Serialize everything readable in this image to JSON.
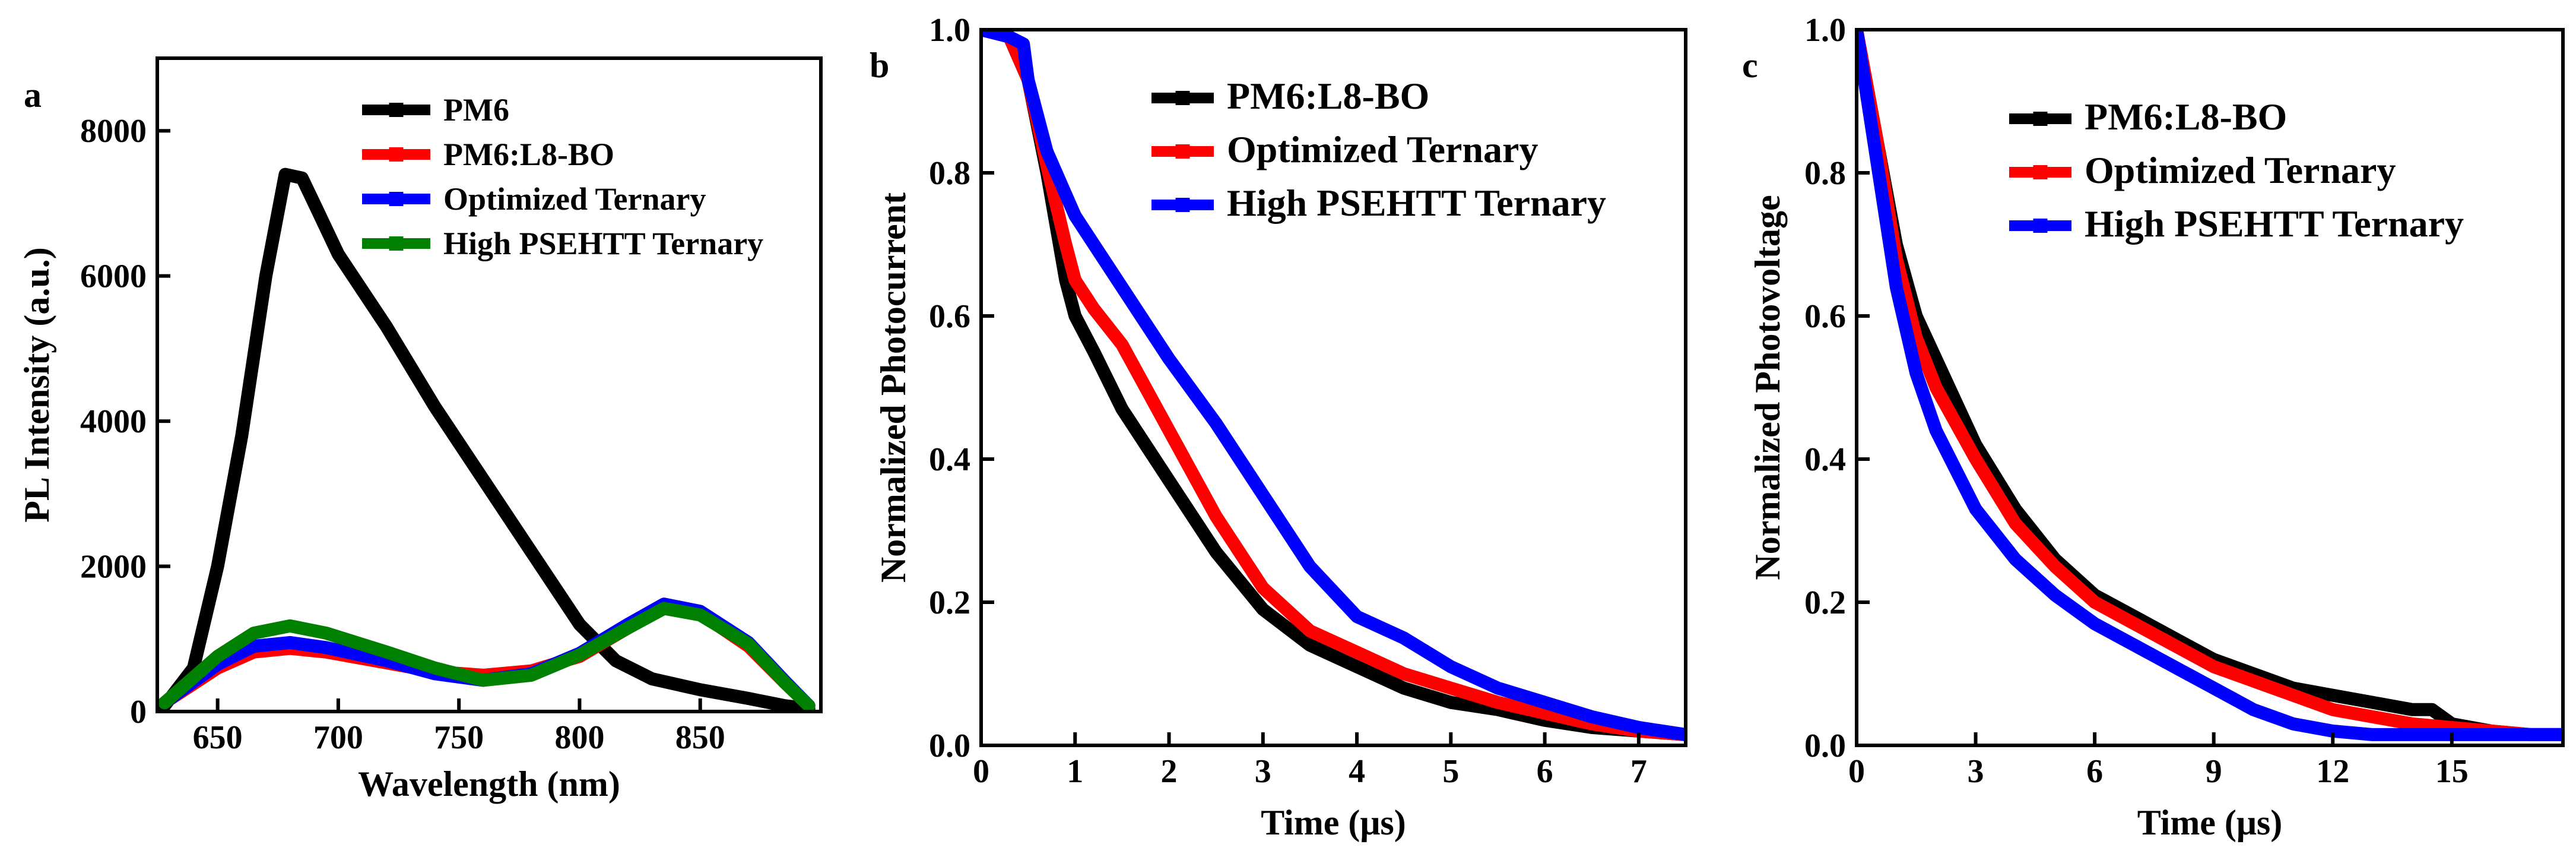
{
  "chart_data": [
    {
      "panel_label": "a",
      "type": "line",
      "xlabel": "Wavelength (nm)",
      "ylabel": "PL Intensity (a.u.)",
      "xlim": [
        625,
        900
      ],
      "ylim": [
        0,
        9000
      ],
      "xticks": [
        650,
        700,
        750,
        800,
        850
      ],
      "yticks": [
        0,
        2000,
        4000,
        6000,
        8000
      ],
      "series": [
        {
          "name": "PM6",
          "color": "#000000",
          "x": [
            628,
            640,
            650,
            660,
            670,
            678,
            685,
            690,
            700,
            720,
            740,
            760,
            780,
            800,
            815,
            830,
            850,
            870,
            885,
            895
          ],
          "y": [
            80,
            600,
            2000,
            3800,
            6000,
            7400,
            7350,
            7000,
            6300,
            5300,
            4200,
            3200,
            2200,
            1200,
            700,
            450,
            300,
            180,
            80,
            40
          ]
        },
        {
          "name": "PM6:L8-BO",
          "color": "#ff0000",
          "x": [
            628,
            650,
            665,
            680,
            695,
            720,
            740,
            760,
            780,
            800,
            820,
            835,
            850,
            870,
            885,
            895
          ],
          "y": [
            120,
            600,
            820,
            870,
            820,
            670,
            550,
            500,
            560,
            760,
            1150,
            1450,
            1350,
            900,
            400,
            80
          ]
        },
        {
          "name": "Optimized Ternary",
          "color": "#0000ff",
          "x": [
            628,
            650,
            665,
            680,
            695,
            720,
            740,
            760,
            780,
            800,
            820,
            835,
            850,
            870,
            885,
            895
          ],
          "y": [
            120,
            650,
            900,
            950,
            880,
            700,
            520,
            430,
            520,
            800,
            1200,
            1480,
            1380,
            950,
            420,
            80
          ]
        },
        {
          "name": "High PSEHTT Ternary",
          "color": "#008000",
          "x": [
            628,
            650,
            665,
            680,
            695,
            720,
            740,
            760,
            780,
            800,
            820,
            835,
            850,
            870,
            885,
            895
          ],
          "y": [
            120,
            760,
            1080,
            1180,
            1080,
            820,
            600,
            430,
            500,
            780,
            1150,
            1420,
            1330,
            930,
            400,
            80
          ]
        }
      ]
    },
    {
      "panel_label": "b",
      "type": "line",
      "xlabel": "Time (μs)",
      "ylabel": "Normalized Photocurrent",
      "xlim": [
        0,
        7.5
      ],
      "ylim": [
        0,
        1.0
      ],
      "xticks": [
        0,
        1,
        2,
        3,
        4,
        5,
        6,
        7
      ],
      "yticks": [
        0.0,
        0.2,
        0.4,
        0.6,
        0.8,
        1.0
      ],
      "yticklabels": [
        "0.0",
        "0.2",
        "0.4",
        "0.6",
        "0.8",
        "1.0"
      ],
      "series": [
        {
          "name": "PM6:L8-BO",
          "color": "#000000",
          "x": [
            0,
            0.3,
            0.5,
            0.7,
            0.9,
            1.0,
            1.2,
            1.5,
            2.0,
            2.5,
            3.0,
            3.5,
            4.0,
            4.5,
            5.0,
            5.5,
            6.0,
            6.5,
            7.0,
            7.5
          ],
          "y": [
            1.0,
            0.99,
            0.93,
            0.8,
            0.65,
            0.6,
            0.55,
            0.47,
            0.37,
            0.27,
            0.19,
            0.14,
            0.11,
            0.08,
            0.06,
            0.05,
            0.035,
            0.025,
            0.02,
            0.015
          ]
        },
        {
          "name": "Optimized Ternary",
          "color": "#ff0000",
          "x": [
            0,
            0.3,
            0.5,
            0.7,
            0.9,
            1.0,
            1.2,
            1.5,
            2.0,
            2.5,
            3.0,
            3.5,
            4.0,
            4.5,
            5.0,
            5.5,
            6.0,
            6.5,
            7.0,
            7.5
          ],
          "y": [
            1.0,
            0.99,
            0.93,
            0.81,
            0.7,
            0.65,
            0.61,
            0.56,
            0.44,
            0.32,
            0.22,
            0.16,
            0.13,
            0.1,
            0.08,
            0.06,
            0.045,
            0.03,
            0.02,
            0.015
          ]
        },
        {
          "name": "High PSEHTT Ternary",
          "color": "#0000ff",
          "x": [
            0,
            0.3,
            0.45,
            0.5,
            0.7,
            0.9,
            1.0,
            1.2,
            1.5,
            2.0,
            2.5,
            3.0,
            3.5,
            4.0,
            4.5,
            5.0,
            5.5,
            6.0,
            6.5,
            7.0,
            7.5
          ],
          "y": [
            1.0,
            0.99,
            0.98,
            0.93,
            0.83,
            0.77,
            0.74,
            0.7,
            0.64,
            0.54,
            0.45,
            0.35,
            0.25,
            0.18,
            0.15,
            0.11,
            0.08,
            0.06,
            0.04,
            0.025,
            0.015
          ]
        }
      ]
    },
    {
      "panel_label": "c",
      "type": "line",
      "xlabel": "Time (μs)",
      "ylabel": "Normalized Photovoltage",
      "xlim": [
        0,
        17.8
      ],
      "ylim": [
        0,
        1.0
      ],
      "xticks": [
        0,
        3,
        6,
        9,
        12,
        15
      ],
      "yticks": [
        0.0,
        0.2,
        0.4,
        0.6,
        0.8,
        1.0
      ],
      "yticklabels": [
        "0.0",
        "0.2",
        "0.4",
        "0.6",
        "0.8",
        "1.0"
      ],
      "series": [
        {
          "name": "PM6:L8-BO",
          "color": "#000000",
          "x": [
            0,
            0.5,
            1.0,
            1.5,
            2.0,
            3.0,
            4.0,
            5.0,
            6.0,
            7.0,
            8.0,
            9.0,
            10.0,
            11.0,
            12.0,
            13.0,
            14.0,
            14.5,
            15.0,
            16.0,
            17.0,
            17.8
          ],
          "y": [
            1.0,
            0.85,
            0.7,
            0.6,
            0.54,
            0.42,
            0.33,
            0.26,
            0.21,
            0.18,
            0.15,
            0.12,
            0.1,
            0.08,
            0.07,
            0.06,
            0.05,
            0.05,
            0.03,
            0.02,
            0.015,
            0.015
          ]
        },
        {
          "name": "Optimized Ternary",
          "color": "#ff0000",
          "x": [
            0,
            0.5,
            1.0,
            1.5,
            2.0,
            3.0,
            4.0,
            5.0,
            6.0,
            7.0,
            8.0,
            9.0,
            10.0,
            11.0,
            12.0,
            13.0,
            14.0,
            15.0,
            16.0,
            17.0,
            17.8
          ],
          "y": [
            1.0,
            0.85,
            0.68,
            0.57,
            0.5,
            0.4,
            0.31,
            0.25,
            0.2,
            0.17,
            0.14,
            0.11,
            0.09,
            0.07,
            0.05,
            0.04,
            0.03,
            0.025,
            0.02,
            0.015,
            0.015
          ]
        },
        {
          "name": "High PSEHTT Ternary",
          "color": "#0000ff",
          "x": [
            0,
            0.5,
            1.0,
            1.5,
            2.0,
            3.0,
            4.0,
            5.0,
            6.0,
            7.0,
            8.0,
            9.0,
            10.0,
            11.0,
            12.0,
            13.0,
            14.0,
            15.0,
            16.0,
            17.0,
            17.8
          ],
          "y": [
            1.0,
            0.82,
            0.64,
            0.52,
            0.44,
            0.33,
            0.26,
            0.21,
            0.17,
            0.14,
            0.11,
            0.08,
            0.05,
            0.03,
            0.02,
            0.015,
            0.015,
            0.015,
            0.015,
            0.015,
            0.015
          ]
        }
      ]
    }
  ]
}
